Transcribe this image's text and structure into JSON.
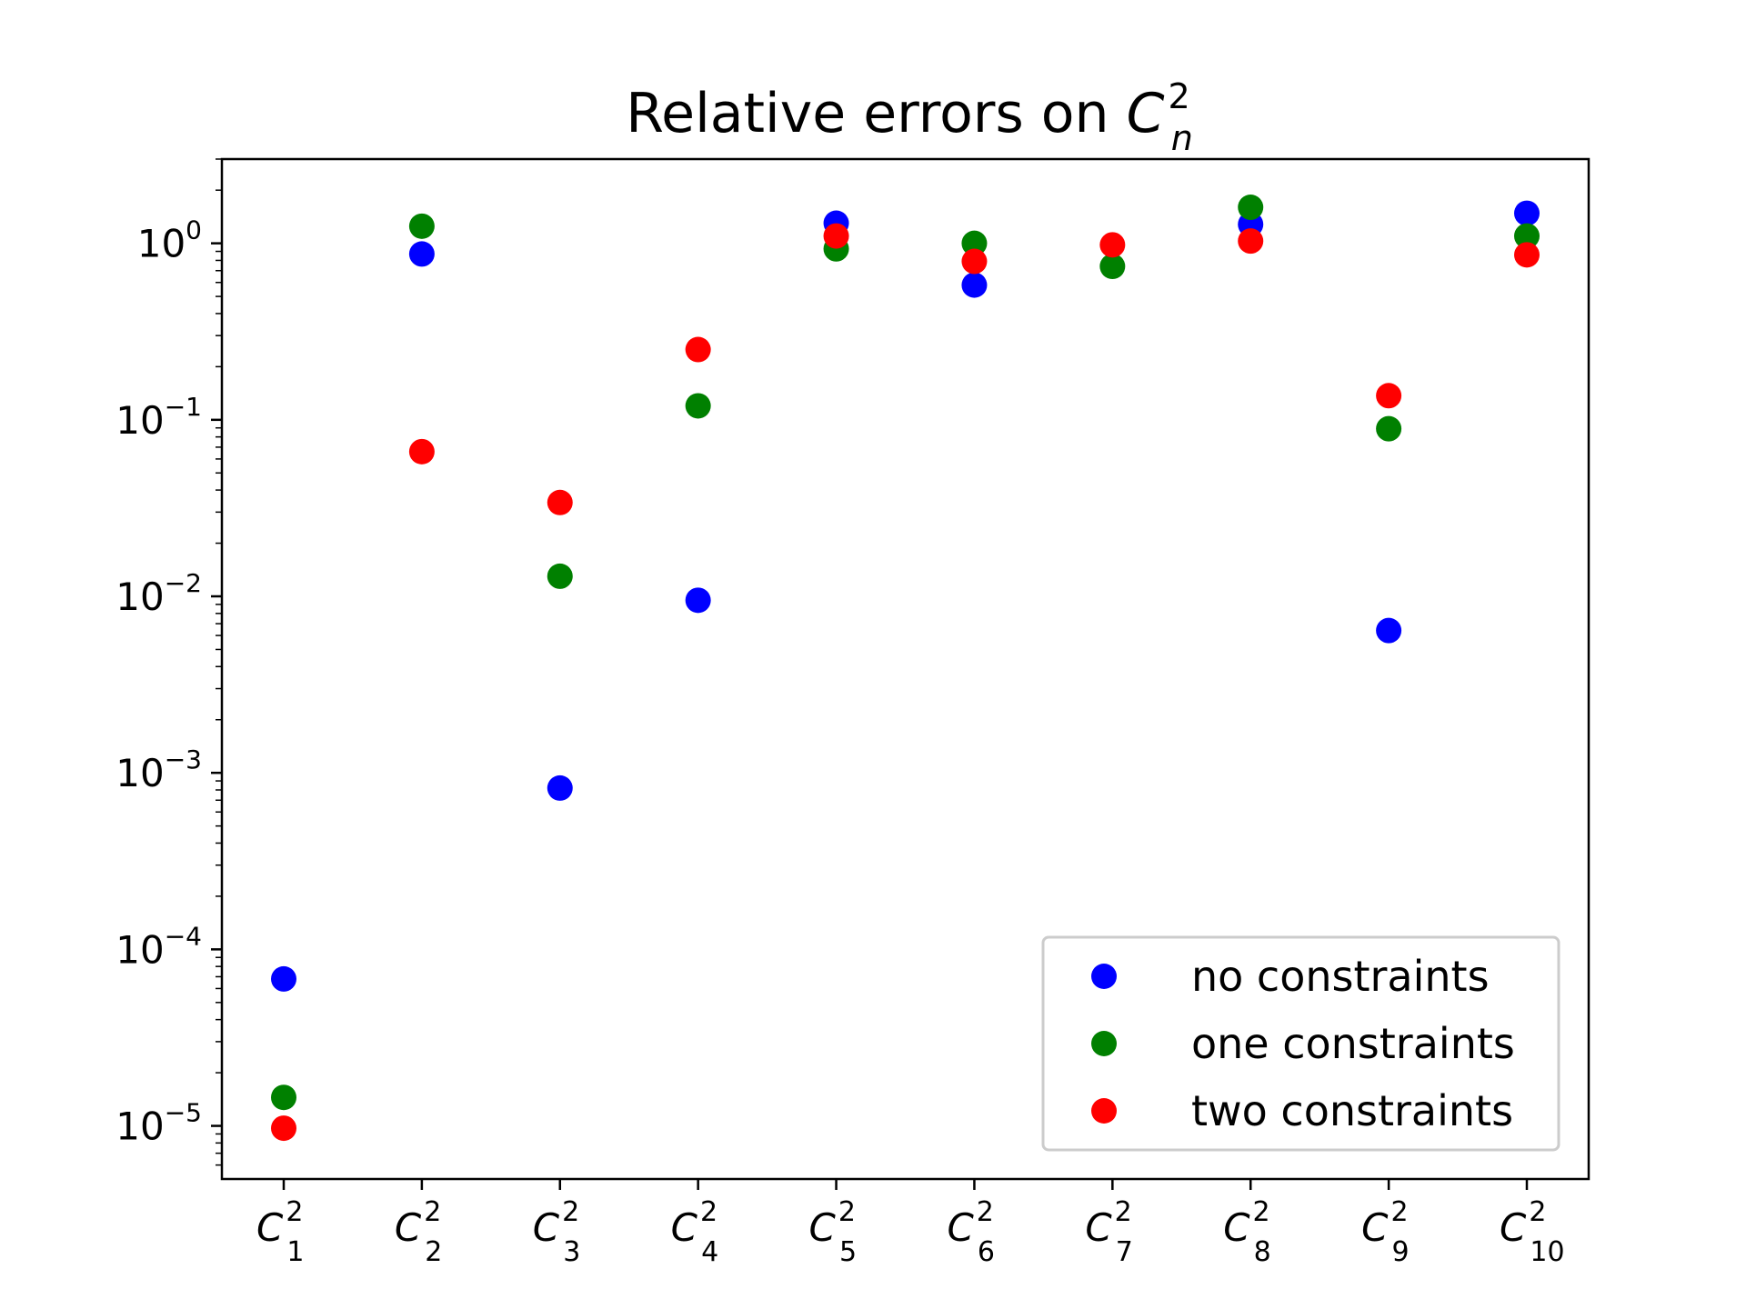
{
  "chart_data": {
    "type": "scatter",
    "title": {
      "text": "Relative errors on ",
      "symbol": "C",
      "sup": "2",
      "sub": "n"
    },
    "yscale": "log",
    "ylim": [
      5e-06,
      3
    ],
    "yticks": [
      {
        "value": 1e-05,
        "base": "10",
        "exp": "−5"
      },
      {
        "value": 0.0001,
        "base": "10",
        "exp": "−4"
      },
      {
        "value": 0.001,
        "base": "10",
        "exp": "−3"
      },
      {
        "value": 0.01,
        "base": "10",
        "exp": "−2"
      },
      {
        "value": 0.1,
        "base": "10",
        "exp": "−1"
      },
      {
        "value": 1,
        "base": "10",
        "exp": "0"
      }
    ],
    "categories": [
      {
        "symbol": "C",
        "sup": "2",
        "sub": "1"
      },
      {
        "symbol": "C",
        "sup": "2",
        "sub": "2"
      },
      {
        "symbol": "C",
        "sup": "2",
        "sub": "3"
      },
      {
        "symbol": "C",
        "sup": "2",
        "sub": "4"
      },
      {
        "symbol": "C",
        "sup": "2",
        "sub": "5"
      },
      {
        "symbol": "C",
        "sup": "2",
        "sub": "6"
      },
      {
        "symbol": "C",
        "sup": "2",
        "sub": "7"
      },
      {
        "symbol": "C",
        "sup": "2",
        "sub": "8"
      },
      {
        "symbol": "C",
        "sup": "2",
        "sub": "9"
      },
      {
        "symbol": "C",
        "sup": "2",
        "sub": "10"
      }
    ],
    "series": [
      {
        "name": "no constraints",
        "color": "#0000ff",
        "values": [
          6.8e-05,
          0.87,
          0.00082,
          0.0095,
          1.3,
          0.58,
          null,
          1.28,
          0.0064,
          1.48
        ]
      },
      {
        "name": "one constraints",
        "color": "#008000",
        "values": [
          1.45e-05,
          1.25,
          0.013,
          0.12,
          0.93,
          1.0,
          0.74,
          1.6,
          0.089,
          1.1
        ]
      },
      {
        "name": "two constraints",
        "color": "#ff0000",
        "values": [
          9.7e-06,
          0.066,
          0.034,
          0.25,
          1.1,
          0.79,
          0.98,
          1.03,
          0.137,
          0.86
        ]
      }
    ],
    "legend": {
      "position": "lower right"
    },
    "grid": false
  }
}
